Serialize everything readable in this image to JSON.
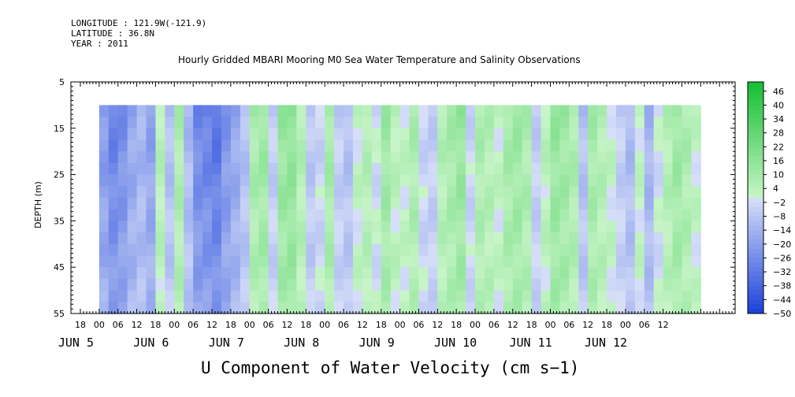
{
  "header": {
    "longitude": "LONGITUDE : 121.9W(-121.9)",
    "latitude": "LATITUDE : 36.8N",
    "year": "YEAR : 2011"
  },
  "chart_data": {
    "type": "heatmap",
    "title": "Hourly Gridded MBARI Mooring M0 Sea Water Temperature and Salinity Observations",
    "variable_title": "U Component of Water Velocity (cm s−1)",
    "ylabel": "DEPTH (m)",
    "ylim": [
      5,
      55
    ],
    "y_inverted": true,
    "y_ticks": [
      5,
      15,
      25,
      35,
      45,
      55
    ],
    "data_depth_range": [
      10,
      55
    ],
    "x_hour_labels": [
      "18",
      "00",
      "06",
      "12",
      "18",
      "00",
      "06",
      "12",
      "18",
      "00",
      "06",
      "12",
      "18",
      "00",
      "06",
      "12",
      "18",
      "00",
      "06",
      "12",
      "18",
      "00",
      "06",
      "12",
      "18",
      "00",
      "06",
      "12",
      "18",
      "00",
      "06",
      "12"
    ],
    "x_day_labels": [
      "JUN  5",
      "JUN  6",
      "JUN  7",
      "JUN  8",
      "JUN  9",
      "JUN 10",
      "JUN 11",
      "JUN 12"
    ],
    "colorbar": {
      "ticks": [
        46,
        40,
        34,
        28,
        22,
        16,
        10,
        4,
        -2,
        -8,
        -14,
        -20,
        -26,
        -32,
        -38,
        -44,
        -50
      ],
      "range": [
        -50,
        50
      ]
    },
    "field_description": {
      "columns_cm_s": [
        -22,
        -30,
        -26,
        -18,
        -14,
        -20,
        5,
        -10,
        8,
        -12,
        -28,
        -30,
        -34,
        -24,
        -18,
        -10,
        9,
        12,
        -6,
        14,
        16,
        6,
        -8,
        -4,
        10,
        -6,
        -10,
        2,
        6,
        -2,
        12,
        4,
        2,
        8,
        -4,
        -6,
        6,
        10,
        14,
        -4,
        8,
        6,
        2,
        10,
        12,
        8,
        -6,
        4,
        14,
        12,
        8,
        -10,
        10,
        6,
        2,
        -6,
        -12,
        2,
        -14,
        -2,
        6,
        12,
        8,
        2
      ],
      "start_hour_offset_from_jun4_18h": 6,
      "hours_per_column": 3
    }
  },
  "colors": {
    "negative_strong": "#2255dd",
    "negative_light": "#aab3f0",
    "zero": "#d8e0f8",
    "positive_light": "#aaf0aa",
    "positive_strong": "#1ec83c",
    "colorbar_frame": "#000000"
  }
}
